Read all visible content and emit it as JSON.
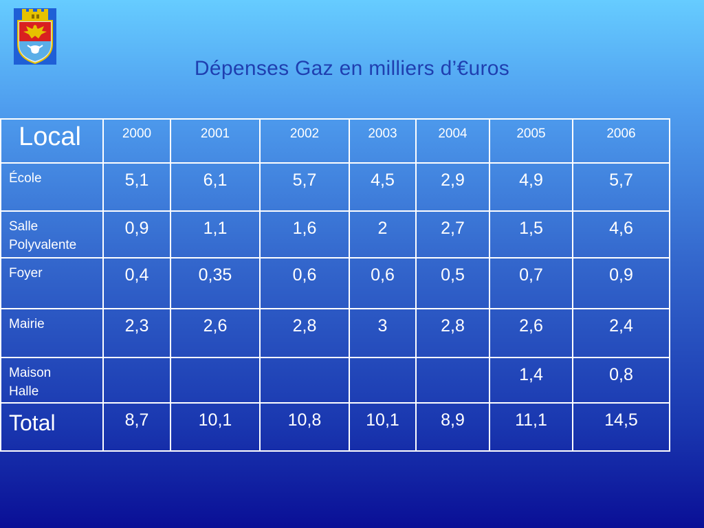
{
  "title": "Dépenses Gaz en milliers d’€uros",
  "logo": {
    "name": "coat-of-arms"
  },
  "table": {
    "corner": "Local",
    "years": [
      "2000",
      "2001",
      "2002",
      "2003",
      "2004",
      "2005",
      "2006"
    ],
    "rows": [
      {
        "label": "École",
        "values": [
          "5,1",
          "6,1",
          "5,7",
          "4,5",
          "2,9",
          "4,9",
          "5,7"
        ]
      },
      {
        "label_line1": "Salle",
        "label_line2": "Polyvalente",
        "values": [
          "0,9",
          "1,1",
          "1,6",
          "2",
          "2,7",
          "1,5",
          "4,6"
        ]
      },
      {
        "label": "Foyer",
        "values": [
          "0,4",
          "0,35",
          "0,6",
          "0,6",
          "0,5",
          "0,7",
          "0,9"
        ]
      },
      {
        "label": "Mairie",
        "values": [
          "2,3",
          "2,6",
          "2,8",
          "3",
          "2,8",
          "2,6",
          "2,4"
        ]
      },
      {
        "label_line1": "Maison",
        "label_line2": "Halle",
        "values": [
          "",
          "",
          "",
          "",
          "",
          "1,4",
          "0,8"
        ]
      },
      {
        "label": "Total",
        "values": [
          "8,7",
          "10,1",
          "10,8",
          "10,1",
          "8,9",
          "11,1",
          "14,5"
        ]
      }
    ]
  },
  "colors": {
    "background_top": "#66ccff",
    "background_bottom": "#0a0f96",
    "title": "#1f3fb0",
    "text": "#ffffff",
    "grid": "#ffffff"
  }
}
